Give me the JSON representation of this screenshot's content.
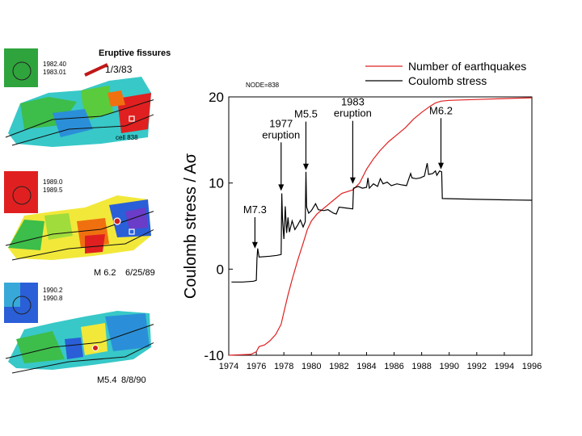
{
  "maps": {
    "eruptive_fissures_label": "Eruptive fissures",
    "fissure_date": "1/3/83",
    "panels": [
      {
        "period_start": "1982.40",
        "period_end": "1983.01",
        "annotation": "cell 838",
        "event": "",
        "event_date": ""
      },
      {
        "period_start": "1989.0",
        "period_end": "1989.5",
        "annotation": "",
        "event": "M 6.2",
        "event_date": "6/25/89"
      },
      {
        "period_start": "1990.2",
        "period_end": "1990.8",
        "annotation": "",
        "event": "M5.4",
        "event_date": "8/8/90"
      }
    ]
  },
  "chart_data": {
    "type": "line",
    "node_label": "NODE=838",
    "ylabel": "Coulomb stress / Aσ",
    "xlabel": "",
    "xlim": [
      1974,
      1996
    ],
    "ylim": [
      -10,
      20
    ],
    "x_ticks": [
      1974,
      1976,
      1978,
      1980,
      1982,
      1984,
      1986,
      1988,
      1990,
      1992,
      1994,
      1996
    ],
    "y_ticks": [
      -10,
      0,
      10,
      20
    ],
    "legend_position": "top-right",
    "series": [
      {
        "name": "Number of earthquakes",
        "color": "#e02020",
        "points": [
          [
            1974.0,
            -10.0
          ],
          [
            1975.6,
            -9.9
          ],
          [
            1976.0,
            -9.6
          ],
          [
            1976.2,
            -9.0
          ],
          [
            1976.6,
            -8.8
          ],
          [
            1977.0,
            -8.3
          ],
          [
            1977.4,
            -7.6
          ],
          [
            1977.8,
            -6.4
          ],
          [
            1978.0,
            -5.0
          ],
          [
            1978.3,
            -3.0
          ],
          [
            1978.6,
            -1.2
          ],
          [
            1979.0,
            1.0
          ],
          [
            1979.4,
            3.0
          ],
          [
            1979.7,
            4.6
          ],
          [
            1980.0,
            5.6
          ],
          [
            1980.4,
            6.4
          ],
          [
            1981.0,
            7.2
          ],
          [
            1981.6,
            8.0
          ],
          [
            1982.2,
            8.8
          ],
          [
            1983.0,
            9.2
          ],
          [
            1983.5,
            10.0
          ],
          [
            1984.0,
            11.6
          ],
          [
            1984.5,
            12.8
          ],
          [
            1985.0,
            13.8
          ],
          [
            1985.6,
            14.8
          ],
          [
            1986.2,
            15.6
          ],
          [
            1986.8,
            16.4
          ],
          [
            1987.4,
            17.4
          ],
          [
            1988.0,
            18.2
          ],
          [
            1988.6,
            18.9
          ],
          [
            1989.0,
            19.3
          ],
          [
            1989.4,
            19.5
          ],
          [
            1990.0,
            19.6
          ],
          [
            1992.0,
            19.7
          ],
          [
            1994.0,
            19.8
          ],
          [
            1996.0,
            19.9
          ]
        ]
      },
      {
        "name": "Coulomb stress",
        "color": "#000000",
        "points": [
          [
            1974.2,
            -1.5
          ],
          [
            1975.0,
            -1.5
          ],
          [
            1975.8,
            -1.4
          ],
          [
            1976.0,
            -1.3
          ],
          [
            1976.05,
            1.2
          ],
          [
            1976.1,
            2.4
          ],
          [
            1976.2,
            1.4
          ],
          [
            1977.0,
            1.5
          ],
          [
            1977.5,
            1.6
          ],
          [
            1977.8,
            1.7
          ],
          [
            1977.85,
            8.8
          ],
          [
            1977.9,
            5.8
          ],
          [
            1978.0,
            3.5
          ],
          [
            1978.1,
            7.3
          ],
          [
            1978.2,
            4.2
          ],
          [
            1978.3,
            6.0
          ],
          [
            1978.4,
            4.3
          ],
          [
            1978.6,
            5.6
          ],
          [
            1978.8,
            4.6
          ],
          [
            1979.0,
            5.1
          ],
          [
            1979.2,
            5.7
          ],
          [
            1979.4,
            4.9
          ],
          [
            1979.55,
            5.5
          ],
          [
            1979.6,
            11.3
          ],
          [
            1979.65,
            7.2
          ],
          [
            1979.8,
            6.5
          ],
          [
            1980.0,
            6.8
          ],
          [
            1980.3,
            7.6
          ],
          [
            1980.5,
            6.9
          ],
          [
            1980.9,
            6.8
          ],
          [
            1981.2,
            6.9
          ],
          [
            1981.6,
            6.5
          ],
          [
            1981.8,
            6.4
          ],
          [
            1982.0,
            7.2
          ],
          [
            1982.5,
            7.1
          ],
          [
            1983.0,
            7.0
          ],
          [
            1983.05,
            9.4
          ],
          [
            1983.4,
            9.6
          ],
          [
            1983.7,
            9.4
          ],
          [
            1984.0,
            9.5
          ],
          [
            1984.1,
            10.6
          ],
          [
            1984.2,
            9.4
          ],
          [
            1984.5,
            9.9
          ],
          [
            1984.8,
            9.6
          ],
          [
            1985.0,
            10.5
          ],
          [
            1985.2,
            9.9
          ],
          [
            1985.5,
            10.1
          ],
          [
            1985.8,
            9.7
          ],
          [
            1986.2,
            9.9
          ],
          [
            1986.5,
            9.8
          ],
          [
            1986.9,
            9.7
          ],
          [
            1987.2,
            11.1
          ],
          [
            1987.3,
            10.6
          ],
          [
            1987.6,
            10.5
          ],
          [
            1987.9,
            10.6
          ],
          [
            1988.2,
            10.8
          ],
          [
            1988.4,
            12.3
          ],
          [
            1988.5,
            11.0
          ],
          [
            1988.8,
            11.1
          ],
          [
            1989.0,
            11.4
          ],
          [
            1989.1,
            10.9
          ],
          [
            1989.3,
            11.4
          ],
          [
            1989.45,
            11.3
          ],
          [
            1989.5,
            8.2
          ],
          [
            1992.0,
            8.1
          ],
          [
            1994.0,
            8.05
          ],
          [
            1996.0,
            8.0
          ]
        ]
      }
    ],
    "annotations": [
      {
        "label": "M7.3",
        "x": 1975.9,
        "y": 2.3,
        "text_y": 6.5
      },
      {
        "label": "1977\neruption",
        "x": 1977.8,
        "y": 9.0,
        "text_y": 16.5
      },
      {
        "label": "M5.5",
        "x": 1979.6,
        "y": 11.4,
        "text_y": 17.6
      },
      {
        "label": "1983\neruption",
        "x": 1983.0,
        "y": 9.8,
        "text_y": 19.0
      },
      {
        "label": "M6.2",
        "x": 1989.4,
        "y": 11.5,
        "text_y": 18.0
      }
    ]
  }
}
